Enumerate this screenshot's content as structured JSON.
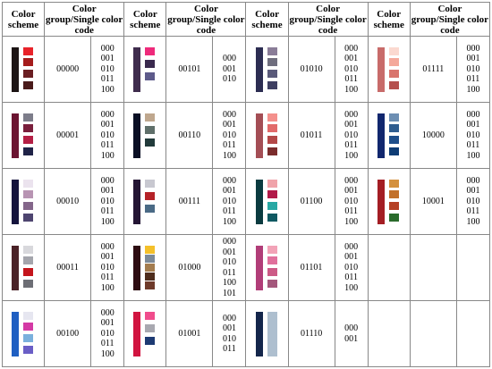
{
  "headers": [
    "Color scheme",
    "Color group/Single color code"
  ],
  "rows": [
    [
      {
        "group": "00000",
        "codes": [
          "000",
          "001",
          "010",
          "011",
          "100"
        ],
        "bar": "#1c1414",
        "squares": [
          "#e8232a",
          "#a51c1c",
          "#6a1e22",
          "#4a1b1b"
        ]
      },
      {
        "group": "00101",
        "codes": [
          "000",
          "001",
          "010"
        ],
        "bar": "#3f2c4d",
        "squares": [
          "#ee2a7b",
          "#3a2a4e",
          "#5d5a8a"
        ]
      },
      {
        "group": "01010",
        "codes": [
          "000",
          "001",
          "010",
          "011",
          "100"
        ],
        "bar": "#2c2d52",
        "squares": [
          "#8a7d98",
          "#6f6e7e",
          "#5a5a7a",
          "#3e3f62"
        ]
      },
      {
        "group": "01111",
        "codes": [
          "000",
          "001",
          "010",
          "011",
          "100"
        ],
        "bar": "#c86b6a",
        "squares": [
          "#fbd9d0",
          "#f4a89a",
          "#d9756d",
          "#b5504e"
        ]
      }
    ],
    [
      {
        "group": "00001",
        "codes": [
          "000",
          "001",
          "010",
          "011",
          "100"
        ],
        "bar": "#6b1431",
        "squares": [
          "#7d7d8a",
          "#7a1f3c",
          "#b41f45",
          "#1f2347"
        ]
      },
      {
        "group": "00110",
        "codes": [
          "000",
          "001",
          "010",
          "011",
          "100"
        ],
        "bar": "#0a0f24",
        "squares": [
          "#bfa78e",
          "#5f6f6a",
          "#213a3a"
        ]
      },
      {
        "group": "01011",
        "codes": [
          "000",
          "001",
          "010",
          "011",
          "100"
        ],
        "bar": "#a44e55",
        "squares": [
          "#f4908c",
          "#e26a6a",
          "#b34848",
          "#7a2c2c"
        ]
      },
      {
        "group": "10000",
        "codes": [
          "000",
          "001",
          "010",
          "011",
          "100"
        ],
        "bar": "#11276e",
        "squares": [
          "#6d8fb3",
          "#2f5d8f",
          "#1e4e8a",
          "#0e3c74"
        ]
      }
    ],
    [
      {
        "group": "00010",
        "codes": [
          "000",
          "001",
          "010",
          "011",
          "100"
        ],
        "bar": "#15143d",
        "squares": [
          "#ebe3ee",
          "#b894b3",
          "#84668a",
          "#4e4570"
        ]
      },
      {
        "group": "00111",
        "codes": [
          "000",
          "001",
          "010",
          "011",
          "100"
        ],
        "bar": "#241534",
        "squares": [
          "#c8c8d0",
          "#b52228",
          "#4a6a85"
        ]
      },
      {
        "group": "01100",
        "codes": [
          "000",
          "001",
          "010",
          "011",
          "100"
        ],
        "bar": "#0b3b40",
        "squares": [
          "#f0a3aa",
          "#b11a49",
          "#27a8a4",
          "#0f5962"
        ]
      },
      {
        "group": "10001",
        "codes": [
          "000",
          "001",
          "010",
          "011",
          "100"
        ],
        "bar": "#a41e24",
        "squares": [
          "#d4913f",
          "#c2712b",
          "#b54024",
          "#2a6b2c"
        ]
      }
    ],
    [
      {
        "group": "00011",
        "codes": [
          "000",
          "001",
          "010",
          "011",
          "100"
        ],
        "bar": "#4a2227",
        "squares": [
          "#d8d8dc",
          "#a4a5ac",
          "#c4151c",
          "#6d6e75"
        ]
      },
      {
        "group": "01000",
        "codes": [
          "000",
          "001",
          "010",
          "011",
          "100",
          "101"
        ],
        "bar": "#2e0c12",
        "squares": [
          "#f4c02a",
          "#7c8a99",
          "#a37c4f",
          "#4e2c1c",
          "#6e3a2a"
        ]
      },
      {
        "group": "01101",
        "codes": [
          "000",
          "001",
          "010",
          "011",
          "100"
        ],
        "bar": "#b13d78",
        "squares": [
          "#f2a3b7",
          "#e0709c",
          "#cc5a86",
          "#a4577c"
        ]
      },
      null
    ],
    [
      {
        "group": "00100",
        "codes": [
          "000",
          "001",
          "010",
          "011",
          "100"
        ],
        "bar": "#1f5fc2",
        "squares": [
          "#e6e6f0",
          "#d43aa5",
          "#7ab0dd",
          "#6a5ec6"
        ]
      },
      {
        "group": "01001",
        "codes": [
          "000",
          "001",
          "010",
          "011"
        ],
        "bar": "#d11440",
        "squares": [
          "#f04c8c",
          "#a8a8b0",
          "#1d3a73"
        ]
      },
      {
        "group": "01110",
        "codes": [
          "000",
          "001"
        ],
        "bar": "#14264b",
        "squares": [
          "#aebfcf"
        ]
      },
      null
    ]
  ]
}
